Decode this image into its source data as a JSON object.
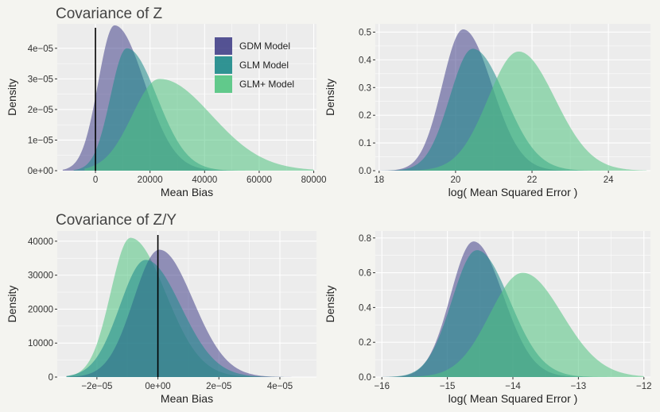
{
  "colors": {
    "gdm": "#44418a",
    "glm": "#1c8a8a",
    "glmplus": "#52c581",
    "background": "#f4f4f0",
    "panel": "#ececec"
  },
  "legend": {
    "entries": [
      {
        "key": "gdm",
        "label": "GDM Model"
      },
      {
        "key": "glm",
        "label": "GLM Model"
      },
      {
        "key": "glmplus",
        "label": "GLM+ Model"
      }
    ]
  },
  "chart_data": [
    {
      "id": "p1",
      "type": "area",
      "title": "Covariance of Z",
      "xlabel": "Mean Bias",
      "ylabel": "Density",
      "xlim": [
        -14000,
        81000
      ],
      "ylim": [
        0,
        4.8e-05
      ],
      "xticks": [
        0,
        20000,
        40000,
        60000,
        80000
      ],
      "xtick_labels": [
        "0",
        "20000",
        "40000",
        "60000",
        "80000"
      ],
      "yticks": [
        0,
        1e-05,
        2e-05,
        3e-05,
        4e-05
      ],
      "ytick_labels": [
        "0e+00",
        "1e−05",
        "2e−05",
        "3e−05",
        "4e−05"
      ],
      "vline": 0,
      "legend": true,
      "series": [
        {
          "key": "gdm",
          "name": "GDM Model",
          "peak_x": 7000,
          "peak_y": 4.75e-05,
          "sd_left": 6000,
          "sd_right": 11000,
          "lo": -12000,
          "hi": 55000
        },
        {
          "key": "glm",
          "name": "GLM Model",
          "peak_x": 11500,
          "peak_y": 4e-05,
          "sd_left": 6000,
          "sd_right": 11000,
          "lo": -8000,
          "hi": 58000
        },
        {
          "key": "glmplus",
          "name": "GLM+ Model",
          "peak_x": 23500,
          "peak_y": 3e-05,
          "sd_left": 10000,
          "sd_right": 19000,
          "lo": -4000,
          "hi": 80000
        }
      ]
    },
    {
      "id": "p2",
      "type": "area",
      "title": "",
      "xlabel": "log( Mean Squared Error )",
      "ylabel": "Density",
      "xlim": [
        17.9,
        25.1
      ],
      "ylim": [
        0,
        0.53
      ],
      "xticks": [
        18,
        20,
        22,
        24
      ],
      "xtick_labels": [
        "18",
        "20",
        "22",
        "24"
      ],
      "yticks": [
        0,
        0.1,
        0.2,
        0.3,
        0.4,
        0.5
      ],
      "ytick_labels": [
        "0.0",
        "0.1",
        "0.2",
        "0.3",
        "0.4",
        "0.5"
      ],
      "vline": null,
      "legend": false,
      "series": [
        {
          "key": "gdm",
          "name": "GDM Model",
          "peak_x": 20.2,
          "peak_y": 0.51,
          "sd_left": 0.55,
          "sd_right": 0.75,
          "lo": 18.0,
          "hi": 25.0
        },
        {
          "key": "glm",
          "name": "GLM Model",
          "peak_x": 20.45,
          "peak_y": 0.44,
          "sd_left": 0.6,
          "sd_right": 0.85,
          "lo": 18.0,
          "hi": 25.0
        },
        {
          "key": "glmplus",
          "name": "GLM+ Model",
          "peak_x": 21.65,
          "peak_y": 0.43,
          "sd_left": 0.8,
          "sd_right": 0.95,
          "lo": 18.0,
          "hi": 25.0
        }
      ]
    },
    {
      "id": "p3",
      "type": "area",
      "title": "Covariance of Z/Y",
      "xlabel": "Mean Bias",
      "ylabel": "Density",
      "xlim": [
        -3.3e-05,
        5.2e-05
      ],
      "ylim": [
        0,
        43000
      ],
      "xticks": [
        -2e-05,
        0,
        2e-05,
        4e-05
      ],
      "xtick_labels": [
        "−2e−05",
        "0e+00",
        "2e−05",
        "4e−05"
      ],
      "yticks": [
        0,
        10000,
        20000,
        30000,
        40000
      ],
      "ytick_labels": [
        "0",
        "10000",
        "20000",
        "30000",
        "40000"
      ],
      "vline": 0,
      "legend": false,
      "series": [
        {
          "key": "glmplus",
          "name": "GLM+ Model",
          "peak_x": -9e-06,
          "peak_y": 41000,
          "sd_left": 6.5e-06,
          "sd_right": 1.15e-05,
          "lo": -3e-05,
          "hi": 5e-05
        },
        {
          "key": "gdm",
          "name": "GDM Model",
          "peak_x": 5e-07,
          "peak_y": 37500,
          "sd_left": 8.5e-06,
          "sd_right": 1.1e-05,
          "lo": -3e-05,
          "hi": 5e-05
        },
        {
          "key": "glm",
          "name": "GLM Model",
          "peak_x": -4e-06,
          "peak_y": 34500,
          "sd_left": 8.5e-06,
          "sd_right": 1.15e-05,
          "lo": -3e-05,
          "hi": 5e-05
        }
      ]
    },
    {
      "id": "p4",
      "type": "area",
      "title": "",
      "xlabel": "log( Mean Squared Error )",
      "ylabel": "Density",
      "xlim": [
        -16.1,
        -11.9
      ],
      "ylim": [
        0,
        0.84
      ],
      "xticks": [
        -16,
        -15,
        -14,
        -13,
        -12
      ],
      "xtick_labels": [
        "−16",
        "−15",
        "−14",
        "−13",
        "−12"
      ],
      "yticks": [
        0,
        0.2,
        0.4,
        0.6,
        0.8
      ],
      "ytick_labels": [
        "0.0",
        "0.2",
        "0.4",
        "0.6",
        "0.8"
      ],
      "vline": null,
      "legend": false,
      "series": [
        {
          "key": "gdm",
          "name": "GDM Model",
          "peak_x": -14.6,
          "peak_y": 0.78,
          "sd_left": 0.35,
          "sd_right": 0.45,
          "lo": -16.0,
          "hi": -12.0
        },
        {
          "key": "glm",
          "name": "GLM Model",
          "peak_x": -14.55,
          "peak_y": 0.73,
          "sd_left": 0.38,
          "sd_right": 0.5,
          "lo": -16.0,
          "hi": -12.0
        },
        {
          "key": "glmplus",
          "name": "GLM+ Model",
          "peak_x": -13.85,
          "peak_y": 0.6,
          "sd_left": 0.5,
          "sd_right": 0.6,
          "lo": -16.0,
          "hi": -12.0
        }
      ]
    }
  ]
}
